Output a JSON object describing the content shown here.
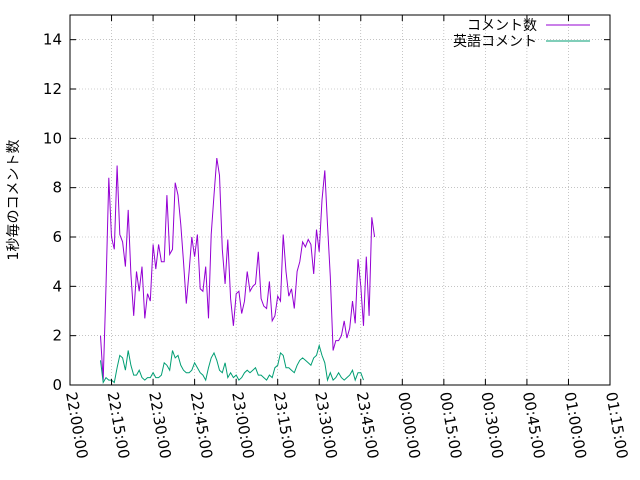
{
  "chart_data": {
    "type": "line",
    "ylabel": "1秒毎のコメント数",
    "xlabel": "",
    "title": "",
    "ylim": [
      0,
      15
    ],
    "y_ticks": [
      0,
      2,
      4,
      6,
      8,
      10,
      12,
      14
    ],
    "x_ticks": [
      "22:00:00",
      "22:15:00",
      "22:30:00",
      "22:45:00",
      "23:00:00",
      "23:15:00",
      "23:30:00",
      "23:45:00",
      "00:00:00",
      "00:15:00",
      "00:30:00",
      "00:45:00",
      "01:00:00",
      "01:15:00"
    ],
    "x_start": "22:00:00",
    "x_end": "01:15:00",
    "grid": true,
    "legend_position": "top-right",
    "colors": {
      "series_1": "#9400d3",
      "series_2": "#009e73"
    },
    "series": [
      {
        "name": "コメント数",
        "points": [
          [
            "22:11:00",
            2.0
          ],
          [
            "22:12:00",
            0.2
          ],
          [
            "22:13:00",
            4.0
          ],
          [
            "22:14:00",
            8.4
          ],
          [
            "22:15:00",
            6.0
          ],
          [
            "22:16:00",
            5.5
          ],
          [
            "22:17:00",
            8.9
          ],
          [
            "22:18:00",
            6.1
          ],
          [
            "22:19:00",
            5.8
          ],
          [
            "22:20:00",
            4.8
          ],
          [
            "22:21:00",
            7.1
          ],
          [
            "22:22:00",
            4.5
          ],
          [
            "22:23:00",
            2.8
          ],
          [
            "22:24:00",
            4.6
          ],
          [
            "22:25:00",
            3.8
          ],
          [
            "22:26:00",
            4.8
          ],
          [
            "22:27:00",
            2.7
          ],
          [
            "22:28:00",
            3.7
          ],
          [
            "22:29:00",
            3.4
          ],
          [
            "22:30:00",
            5.7
          ],
          [
            "22:31:00",
            4.7
          ],
          [
            "22:32:00",
            5.7
          ],
          [
            "22:33:00",
            5.0
          ],
          [
            "22:34:00",
            5.0
          ],
          [
            "22:35:00",
            7.7
          ],
          [
            "22:36:00",
            5.3
          ],
          [
            "22:37:00",
            5.5
          ],
          [
            "22:38:00",
            8.2
          ],
          [
            "22:39:00",
            7.7
          ],
          [
            "22:40:00",
            6.5
          ],
          [
            "22:41:00",
            5.0
          ],
          [
            "22:42:00",
            3.3
          ],
          [
            "22:43:00",
            4.6
          ],
          [
            "22:44:00",
            6.0
          ],
          [
            "22:45:00",
            5.2
          ],
          [
            "22:46:00",
            6.1
          ],
          [
            "22:47:00",
            3.9
          ],
          [
            "22:48:00",
            3.8
          ],
          [
            "22:49:00",
            4.8
          ],
          [
            "22:50:00",
            2.7
          ],
          [
            "22:51:00",
            6.1
          ],
          [
            "22:52:00",
            7.7
          ],
          [
            "22:53:00",
            9.2
          ],
          [
            "22:54:00",
            8.5
          ],
          [
            "22:55:00",
            5.5
          ],
          [
            "22:56:00",
            4.1
          ],
          [
            "22:57:00",
            5.9
          ],
          [
            "22:58:00",
            3.5
          ],
          [
            "22:59:00",
            2.4
          ],
          [
            "23:00:00",
            3.7
          ],
          [
            "23:01:00",
            3.8
          ],
          [
            "23:02:00",
            2.9
          ],
          [
            "23:03:00",
            3.4
          ],
          [
            "23:04:00",
            4.6
          ],
          [
            "23:05:00",
            3.8
          ],
          [
            "23:06:00",
            4.0
          ],
          [
            "23:07:00",
            4.1
          ],
          [
            "23:08:00",
            5.4
          ],
          [
            "23:09:00",
            3.5
          ],
          [
            "23:10:00",
            3.2
          ],
          [
            "23:11:00",
            3.1
          ],
          [
            "23:12:00",
            4.2
          ],
          [
            "23:13:00",
            2.6
          ],
          [
            "23:14:00",
            2.8
          ],
          [
            "23:15:00",
            3.6
          ],
          [
            "23:16:00",
            3.4
          ],
          [
            "23:17:00",
            6.1
          ],
          [
            "23:18:00",
            4.6
          ],
          [
            "23:19:00",
            3.6
          ],
          [
            "23:20:00",
            3.9
          ],
          [
            "23:21:00",
            3.1
          ],
          [
            "23:22:00",
            4.6
          ],
          [
            "23:23:00",
            5.0
          ],
          [
            "23:24:00",
            5.8
          ],
          [
            "23:25:00",
            5.6
          ],
          [
            "23:26:00",
            5.9
          ],
          [
            "23:27:00",
            5.7
          ],
          [
            "23:28:00",
            4.5
          ],
          [
            "23:29:00",
            6.3
          ],
          [
            "23:30:00",
            5.4
          ],
          [
            "23:31:00",
            7.5
          ],
          [
            "23:32:00",
            8.7
          ],
          [
            "23:33:00",
            6.5
          ],
          [
            "23:34:00",
            4.4
          ],
          [
            "23:35:00",
            1.4
          ],
          [
            "23:36:00",
            1.8
          ],
          [
            "23:37:00",
            1.8
          ],
          [
            "23:38:00",
            2.0
          ],
          [
            "23:39:00",
            2.6
          ],
          [
            "23:40:00",
            1.9
          ],
          [
            "23:41:00",
            2.3
          ],
          [
            "23:42:00",
            3.4
          ],
          [
            "23:43:00",
            2.5
          ],
          [
            "23:44:00",
            5.1
          ],
          [
            "23:45:00",
            4.0
          ],
          [
            "23:46:00",
            2.4
          ],
          [
            "23:47:00",
            5.2
          ],
          [
            "23:48:00",
            2.8
          ],
          [
            "23:49:00",
            6.8
          ],
          [
            "23:50:00",
            6.0
          ]
        ]
      },
      {
        "name": "英語コメント",
        "points": [
          [
            "22:11:00",
            1.0
          ],
          [
            "22:12:00",
            0.1
          ],
          [
            "22:13:00",
            0.3
          ],
          [
            "22:14:00",
            0.2
          ],
          [
            "22:15:00",
            0.2
          ],
          [
            "22:16:00",
            0.1
          ],
          [
            "22:17:00",
            0.7
          ],
          [
            "22:18:00",
            1.2
          ],
          [
            "22:19:00",
            1.1
          ],
          [
            "22:20:00",
            0.6
          ],
          [
            "22:21:00",
            1.4
          ],
          [
            "22:22:00",
            0.8
          ],
          [
            "22:23:00",
            0.4
          ],
          [
            "22:24:00",
            0.4
          ],
          [
            "22:25:00",
            0.6
          ],
          [
            "22:26:00",
            0.3
          ],
          [
            "22:27:00",
            0.2
          ],
          [
            "22:28:00",
            0.3
          ],
          [
            "22:29:00",
            0.3
          ],
          [
            "22:30:00",
            0.5
          ],
          [
            "22:31:00",
            0.3
          ],
          [
            "22:32:00",
            0.3
          ],
          [
            "22:33:00",
            0.4
          ],
          [
            "22:34:00",
            0.9
          ],
          [
            "22:35:00",
            0.8
          ],
          [
            "22:36:00",
            0.6
          ],
          [
            "22:37:00",
            1.4
          ],
          [
            "22:38:00",
            1.1
          ],
          [
            "22:39:00",
            1.2
          ],
          [
            "22:40:00",
            0.8
          ],
          [
            "22:41:00",
            0.6
          ],
          [
            "22:42:00",
            0.5
          ],
          [
            "22:43:00",
            0.5
          ],
          [
            "22:44:00",
            0.6
          ],
          [
            "22:45:00",
            0.9
          ],
          [
            "22:46:00",
            0.7
          ],
          [
            "22:47:00",
            0.5
          ],
          [
            "22:48:00",
            0.4
          ],
          [
            "22:49:00",
            0.2
          ],
          [
            "22:50:00",
            0.7
          ],
          [
            "22:51:00",
            1.1
          ],
          [
            "22:52:00",
            1.3
          ],
          [
            "22:53:00",
            1.0
          ],
          [
            "22:54:00",
            0.6
          ],
          [
            "22:55:00",
            0.5
          ],
          [
            "22:56:00",
            0.9
          ],
          [
            "22:57:00",
            0.3
          ],
          [
            "22:58:00",
            0.5
          ],
          [
            "22:59:00",
            0.3
          ],
          [
            "23:00:00",
            0.4
          ],
          [
            "23:01:00",
            0.2
          ],
          [
            "23:02:00",
            0.3
          ],
          [
            "23:03:00",
            0.5
          ],
          [
            "23:04:00",
            0.6
          ],
          [
            "23:05:00",
            0.5
          ],
          [
            "23:06:00",
            0.6
          ],
          [
            "23:07:00",
            0.7
          ],
          [
            "23:08:00",
            0.4
          ],
          [
            "23:09:00",
            0.4
          ],
          [
            "23:10:00",
            0.3
          ],
          [
            "23:11:00",
            0.2
          ],
          [
            "23:12:00",
            0.4
          ],
          [
            "23:13:00",
            0.3
          ],
          [
            "23:14:00",
            0.7
          ],
          [
            "23:15:00",
            0.8
          ],
          [
            "23:16:00",
            1.3
          ],
          [
            "23:17:00",
            1.2
          ],
          [
            "23:18:00",
            0.7
          ],
          [
            "23:19:00",
            0.7
          ],
          [
            "23:20:00",
            0.6
          ],
          [
            "23:21:00",
            0.5
          ],
          [
            "23:22:00",
            0.8
          ],
          [
            "23:23:00",
            1.0
          ],
          [
            "23:24:00",
            1.1
          ],
          [
            "23:25:00",
            1.0
          ],
          [
            "23:26:00",
            0.9
          ],
          [
            "23:27:00",
            0.8
          ],
          [
            "23:28:00",
            1.1
          ],
          [
            "23:29:00",
            1.2
          ],
          [
            "23:30:00",
            1.6
          ],
          [
            "23:31:00",
            1.2
          ],
          [
            "23:32:00",
            0.9
          ],
          [
            "23:33:00",
            0.2
          ],
          [
            "23:34:00",
            0.5
          ],
          [
            "23:35:00",
            0.2
          ],
          [
            "23:36:00",
            0.3
          ],
          [
            "23:37:00",
            0.5
          ],
          [
            "23:38:00",
            0.3
          ],
          [
            "23:39:00",
            0.2
          ],
          [
            "23:40:00",
            0.3
          ],
          [
            "23:41:00",
            0.4
          ],
          [
            "23:42:00",
            0.6
          ],
          [
            "23:43:00",
            0.2
          ],
          [
            "23:44:00",
            0.5
          ],
          [
            "23:45:00",
            0.5
          ],
          [
            "23:46:00",
            0.2
          ]
        ]
      }
    ]
  }
}
